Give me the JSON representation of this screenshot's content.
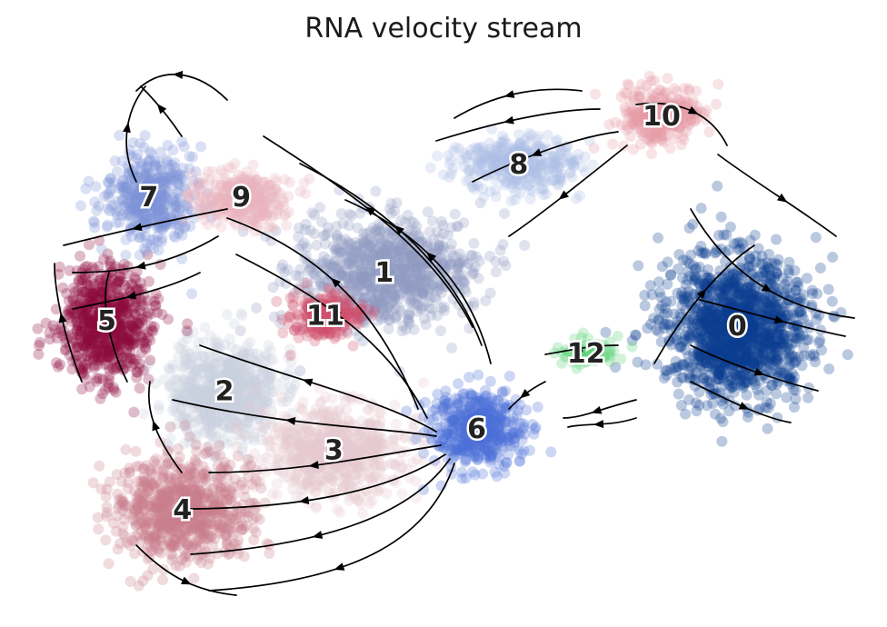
{
  "chart_data": {
    "type": "scatter",
    "title": "RNA velocity stream",
    "xlabel": "",
    "ylabel": "",
    "axes_visible": false,
    "grid": false,
    "legend": "on data",
    "xlim": [
      0,
      100
    ],
    "ylim": [
      0,
      100
    ],
    "clusters": [
      {
        "label": "0",
        "x": 85,
        "y": 52,
        "color": "#0b3d91"
      },
      {
        "label": "1",
        "x": 43,
        "y": 62,
        "color": "#8f9cc2"
      },
      {
        "label": "2",
        "x": 24,
        "y": 40,
        "color": "#c9cfe0"
      },
      {
        "label": "3",
        "x": 37,
        "y": 29,
        "color": "#e7c9cf"
      },
      {
        "label": "4",
        "x": 19,
        "y": 18,
        "color": "#c97e8d"
      },
      {
        "label": "5",
        "x": 10,
        "y": 53,
        "color": "#8b0a3c"
      },
      {
        "label": "6",
        "x": 54,
        "y": 33,
        "color": "#4a6fd8"
      },
      {
        "label": "7",
        "x": 15,
        "y": 76,
        "color": "#7f93d9"
      },
      {
        "label": "8",
        "x": 59,
        "y": 82,
        "color": "#aebde6"
      },
      {
        "label": "9",
        "x": 26,
        "y": 76,
        "color": "#ebb3bd"
      },
      {
        "label": "10",
        "x": 76,
        "y": 91,
        "color": "#e69aa5"
      },
      {
        "label": "11",
        "x": 36,
        "y": 54,
        "color": "#cf4e6b"
      },
      {
        "label": "12",
        "x": 67,
        "y": 47,
        "color": "#5fd37a"
      }
    ]
  }
}
